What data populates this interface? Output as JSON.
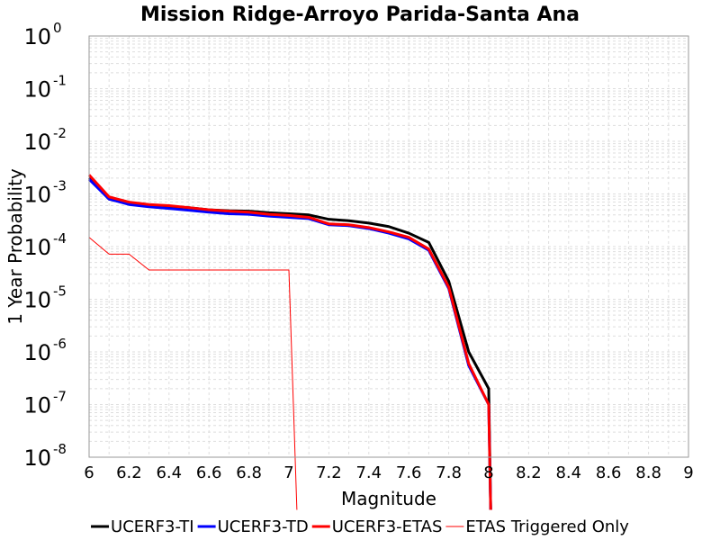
{
  "chart_data": {
    "type": "line",
    "title": "Mission Ridge-Arroyo Parida-Santa Ana",
    "xlabel": "Magnitude",
    "ylabel": "1 Year Probability",
    "x_scale": "linear",
    "y_scale": "log",
    "xlim": [
      6,
      9
    ],
    "ylim": [
      1e-08,
      1
    ],
    "grid": true,
    "legend_position": "bottom",
    "x_ticks": [
      "6",
      "6.2",
      "6.4",
      "6.6",
      "6.8",
      "7",
      "7.2",
      "7.4",
      "7.6",
      "7.8",
      "8",
      "8.2",
      "8.4",
      "8.6",
      "8.8",
      "9"
    ],
    "y_ticks": [
      {
        "base": "10",
        "exp": "0"
      },
      {
        "base": "10",
        "exp": "-1"
      },
      {
        "base": "10",
        "exp": "-2"
      },
      {
        "base": "10",
        "exp": "-3"
      },
      {
        "base": "10",
        "exp": "-4"
      },
      {
        "base": "10",
        "exp": "-5"
      },
      {
        "base": "10",
        "exp": "-6"
      },
      {
        "base": "10",
        "exp": "-7"
      },
      {
        "base": "10",
        "exp": "-8"
      }
    ],
    "series": [
      {
        "name": "UCERF3-TI",
        "color": "#000000",
        "width": 3,
        "x": [
          6.0,
          6.1,
          6.2,
          6.3,
          6.4,
          6.5,
          6.6,
          6.7,
          6.8,
          6.9,
          7.0,
          7.1,
          7.2,
          7.3,
          7.4,
          7.5,
          7.6,
          7.7,
          7.8,
          7.9,
          8.0,
          8.01
        ],
        "y": [
          0.002,
          0.0008,
          0.00065,
          0.0006,
          0.00058,
          0.00055,
          0.0005,
          0.00048,
          0.00047,
          0.00044,
          0.00042,
          0.0004,
          0.00033,
          0.00031,
          0.00028,
          0.00024,
          0.00018,
          0.00012,
          2.2e-05,
          1e-06,
          2e-07,
          1e-09
        ]
      },
      {
        "name": "UCERF3-TD",
        "color": "#0000ff",
        "width": 3,
        "x": [
          6.0,
          6.1,
          6.2,
          6.3,
          6.4,
          6.5,
          6.6,
          6.7,
          6.8,
          6.9,
          7.0,
          7.1,
          7.2,
          7.3,
          7.4,
          7.5,
          7.6,
          7.7,
          7.8,
          7.9,
          8.0,
          8.01
        ],
        "y": [
          0.0019,
          0.0008,
          0.00063,
          0.00057,
          0.00053,
          0.00049,
          0.00045,
          0.00042,
          0.00041,
          0.00038,
          0.00036,
          0.00034,
          0.00026,
          0.00025,
          0.00022,
          0.00018,
          0.00014,
          8.5e-05,
          1.6e-05,
          5.5e-07,
          1e-07,
          1e-09
        ]
      },
      {
        "name": "UCERF3-ETAS",
        "color": "#ff0000",
        "width": 3,
        "x": [
          6.0,
          6.1,
          6.2,
          6.3,
          6.4,
          6.5,
          6.6,
          6.7,
          6.8,
          6.9,
          7.0,
          7.1,
          7.2,
          7.3,
          7.4,
          7.5,
          7.6,
          7.7,
          7.8,
          7.9,
          8.0,
          8.01
        ],
        "y": [
          0.0023,
          0.00088,
          0.0007,
          0.00063,
          0.0006,
          0.00055,
          0.0005,
          0.00047,
          0.00045,
          0.00041,
          0.00039,
          0.00036,
          0.00027,
          0.00026,
          0.00023,
          0.00019,
          0.00015,
          9e-05,
          1.7e-05,
          6e-07,
          1e-07,
          1e-09
        ]
      },
      {
        "name": "ETAS Triggered Only",
        "color": "#ff0000",
        "width": 1,
        "x": [
          6.0,
          6.1,
          6.2,
          6.3,
          6.4,
          6.5,
          6.6,
          6.7,
          6.8,
          6.9,
          7.0,
          7.04
        ],
        "y": [
          0.00015,
          7.2e-05,
          7.2e-05,
          3.6e-05,
          3.6e-05,
          3.6e-05,
          3.6e-05,
          3.6e-05,
          3.6e-05,
          3.6e-05,
          3.6e-05,
          1e-09
        ]
      }
    ]
  }
}
